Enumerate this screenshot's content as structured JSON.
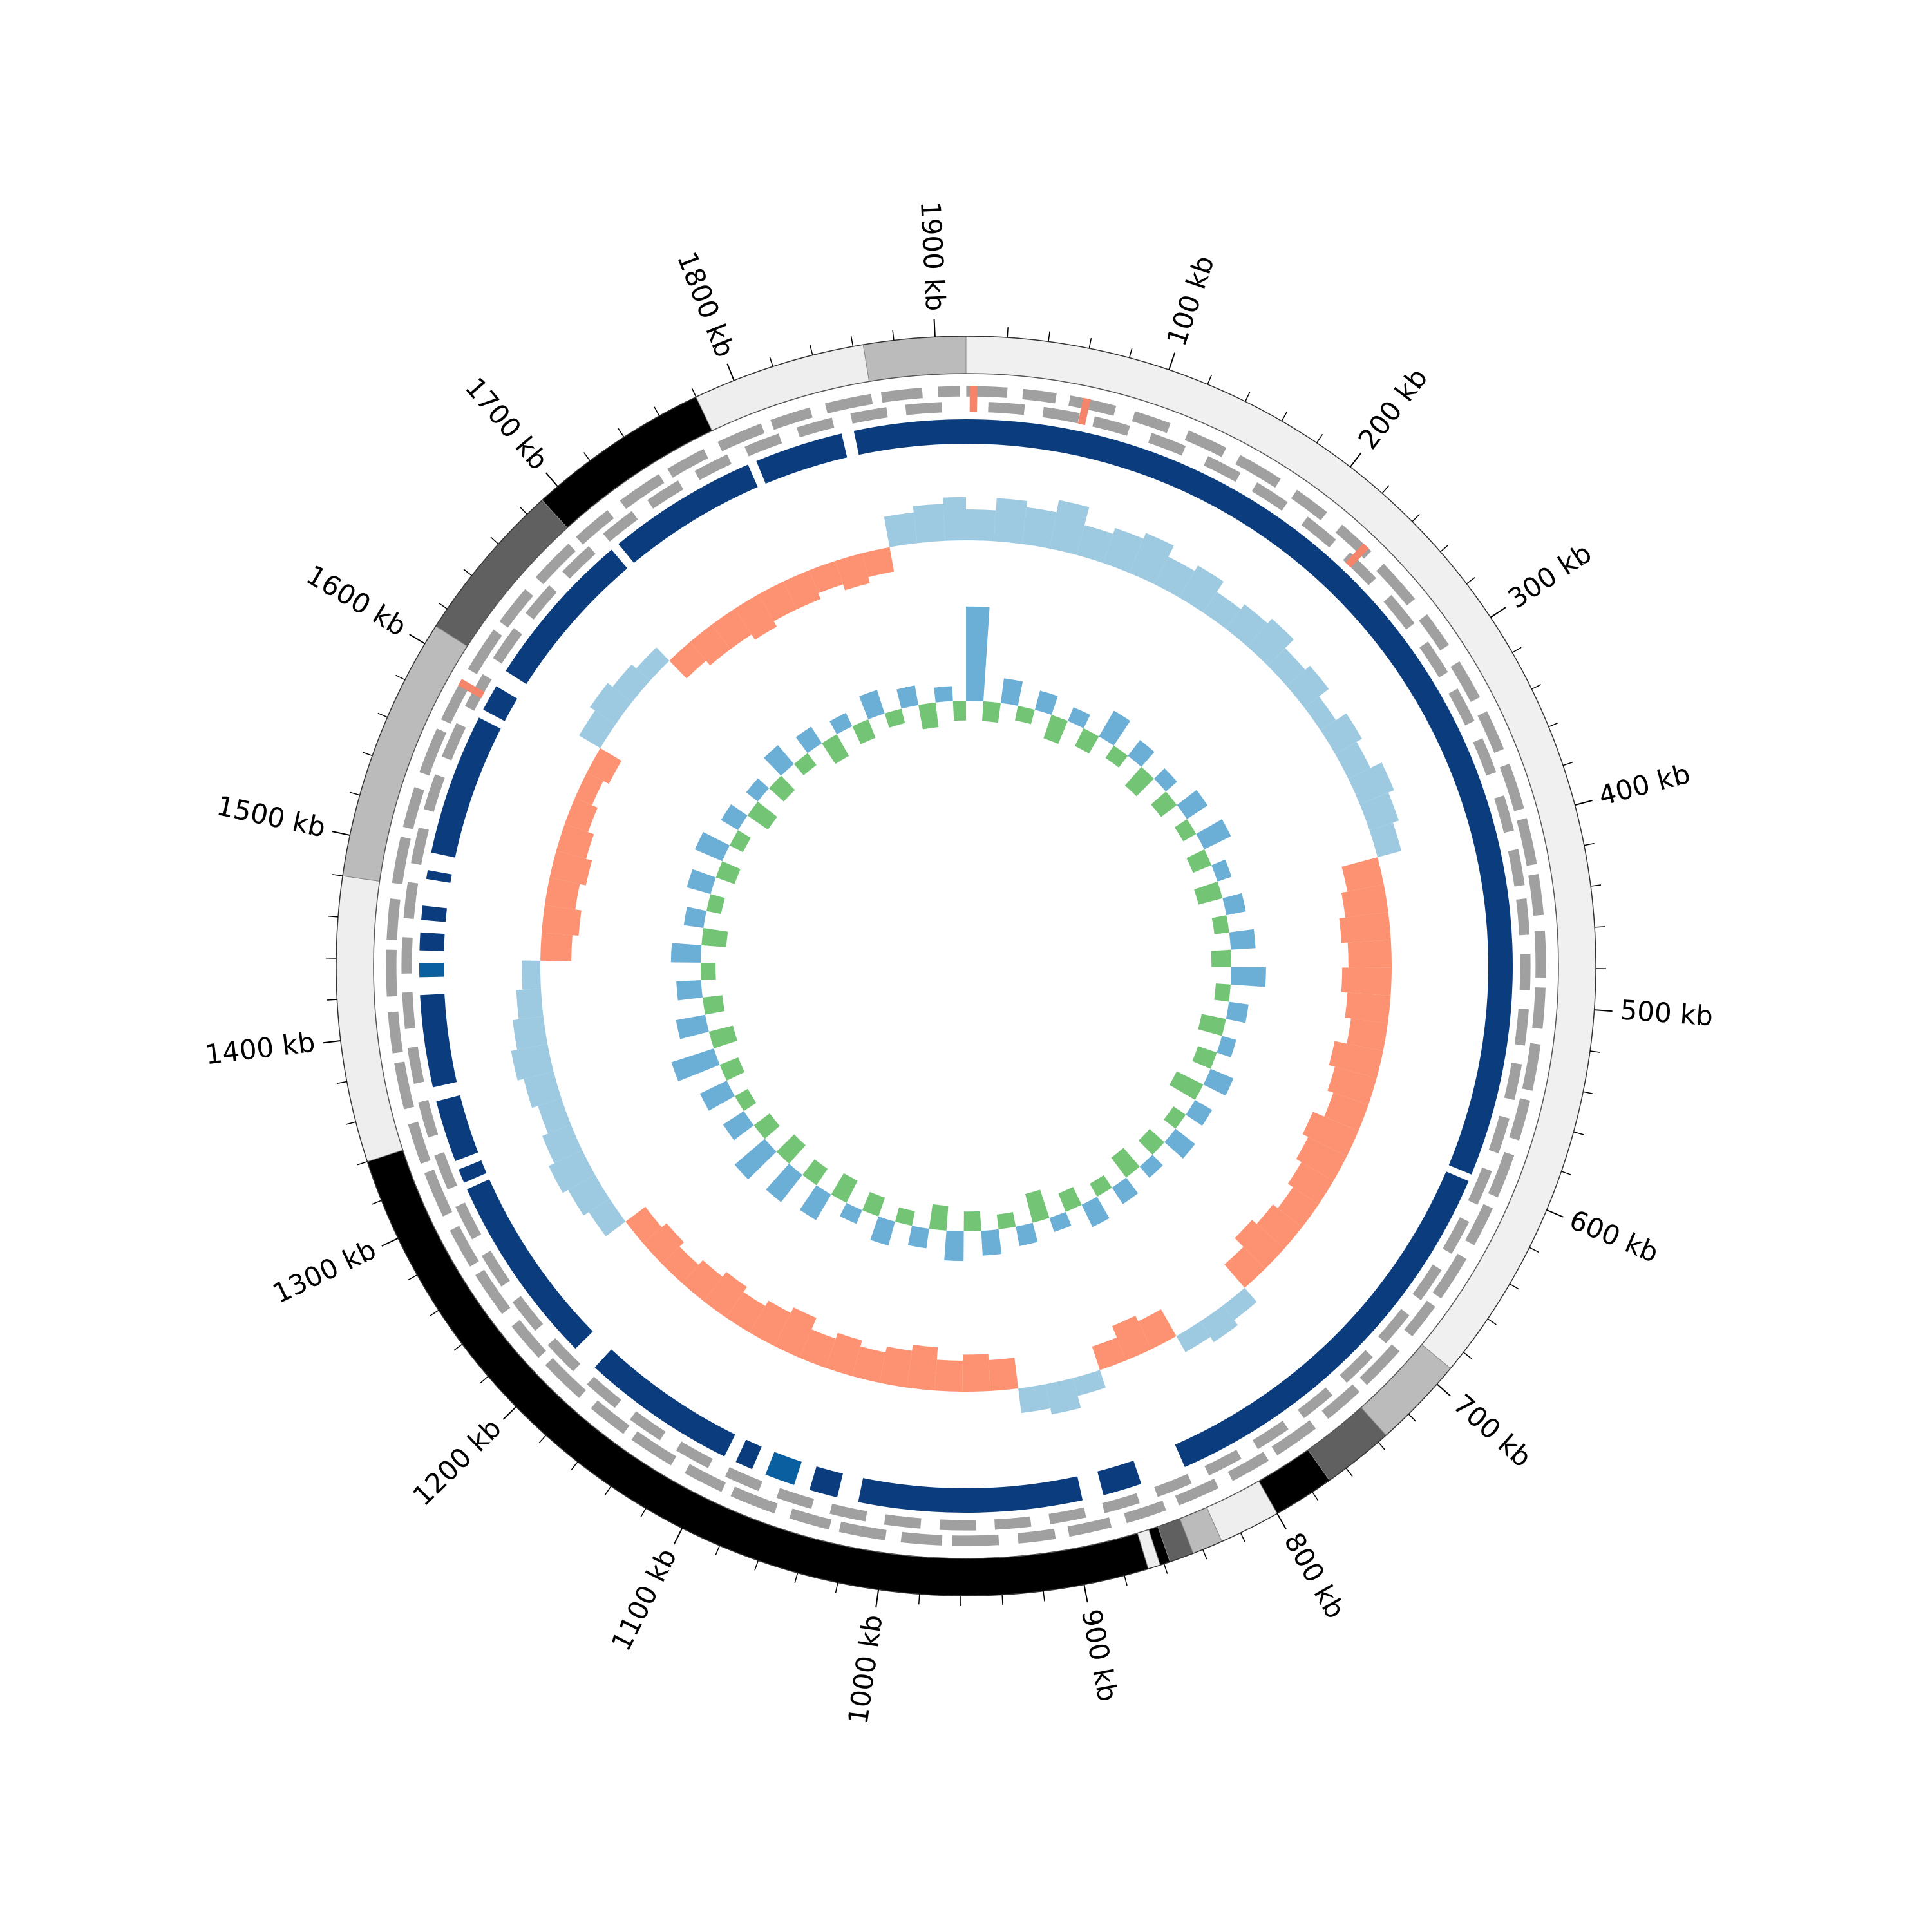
{
  "chart_data": {
    "type": "circular_genome",
    "xlim": [
      0,
      1915
    ],
    "xticks": [
      {
        "value": 100,
        "label": "100 kb"
      },
      {
        "value": 200,
        "label": "200 kb"
      },
      {
        "value": 300,
        "label": "300 kb"
      },
      {
        "value": 400,
        "label": "400 kb"
      },
      {
        "value": 500,
        "label": "500 kb"
      },
      {
        "value": 600,
        "label": "600 kb"
      },
      {
        "value": 700,
        "label": "700 kb"
      },
      {
        "value": 800,
        "label": "800 kb"
      },
      {
        "value": 900,
        "label": "900 kb"
      },
      {
        "value": 1000,
        "label": "1000 kb"
      },
      {
        "value": 1100,
        "label": "1100 kb"
      },
      {
        "value": 1200,
        "label": "1200 kb"
      },
      {
        "value": 1300,
        "label": "1300 kb"
      },
      {
        "value": 1400,
        "label": "1400 kb"
      },
      {
        "value": 1500,
        "label": "1500 kb"
      },
      {
        "value": 1600,
        "label": "1600 kb"
      },
      {
        "value": 1700,
        "label": "1700 kb"
      },
      {
        "value": 1800,
        "label": "1800 kb"
      },
      {
        "value": 1900,
        "label": "1900 kb"
      }
    ],
    "xticks_minor": [
      20,
      40,
      60,
      80,
      120,
      140,
      160,
      180,
      220,
      240,
      260,
      280,
      320,
      340,
      360,
      380,
      420,
      440,
      460,
      480,
      520,
      540,
      560,
      580,
      620,
      640,
      660,
      680,
      720,
      740,
      760,
      780,
      820,
      840,
      860,
      880,
      920,
      940,
      960,
      980,
      1020,
      1040,
      1060,
      1080,
      1120,
      1140,
      1160,
      1180,
      1220,
      1240,
      1260,
      1280,
      1320,
      1340,
      1360,
      1380,
      1420,
      1440,
      1460,
      1480,
      1520,
      1540,
      1560,
      1580,
      1620,
      1640,
      1660,
      1680,
      1720,
      1740,
      1760,
      1780,
      1820,
      1840,
      1860,
      1880
    ],
    "bands": [
      {
        "start": 0,
        "end": 690,
        "color": "#f0f0f0"
      },
      {
        "start": 690,
        "end": 735,
        "color": "#bbbbbb"
      },
      {
        "start": 735,
        "end": 770,
        "color": "#606060"
      },
      {
        "start": 770,
        "end": 800,
        "color": "#000000"
      },
      {
        "start": 800,
        "end": 830,
        "color": "#eeeeee"
      },
      {
        "start": 830,
        "end": 845,
        "color": "#bbbbbb"
      },
      {
        "start": 845,
        "end": 857,
        "color": "#606060"
      },
      {
        "start": 857,
        "end": 862,
        "color": "#000000"
      },
      {
        "start": 862,
        "end": 868,
        "color": "#eeeeee"
      },
      {
        "start": 868,
        "end": 1340,
        "color": "#000000"
      },
      {
        "start": 1340,
        "end": 1480,
        "color": "#eeeeee"
      },
      {
        "start": 1480,
        "end": 1610,
        "color": "#bbbbbb"
      },
      {
        "start": 1610,
        "end": 1690,
        "color": "#606060"
      },
      {
        "start": 1690,
        "end": 1780,
        "color": "#000000"
      },
      {
        "start": 1780,
        "end": 1865,
        "color": "#eeeeee"
      },
      {
        "start": 1865,
        "end": 1915,
        "color": "#bbbbbb"
      }
    ],
    "genes": [
      {
        "color": "#a0a0a0",
        "start": [
          0,
          30,
          55,
          90,
          120,
          150,
          185,
          215,
          245,
          280,
          310,
          340,
          370,
          400,
          430,
          460,
          490,
          520,
          550,
          580,
          610,
          640,
          670,
          700,
          730,
          760,
          790,
          820,
          850,
          880,
          910,
          940,
          970,
          1000,
          1030,
          1060,
          1090,
          1120,
          1150,
          1180,
          1210,
          1240,
          1270,
          1300,
          1330,
          1360,
          1390,
          1420,
          1450,
          1480,
          1510,
          1540,
          1570,
          1600,
          1630,
          1660,
          1690,
          1720,
          1750,
          1780,
          1810,
          1840,
          1870,
          1900
        ],
        "end": [
          22,
          48,
          80,
          110,
          142,
          175,
          205,
          236,
          270,
          300,
          332,
          362,
          395,
          425,
          452,
          485,
          512,
          545,
          572,
          604,
          632,
          665,
          690,
          725,
          752,
          785,
          812,
          843,
          872,
          903,
          930,
          965,
          992,
          1025,
          1052,
          1085,
          1112,
          1145,
          1172,
          1205,
          1232,
          1265,
          1292,
          1325,
          1352,
          1385,
          1412,
          1445,
          1472,
          1505,
          1532,
          1565,
          1592,
          1625,
          1652,
          1685,
          1712,
          1745,
          1772,
          1805,
          1832,
          1865,
          1892,
          1912
        ]
      },
      {
        "color": "#a0a0a0",
        "start": [
          12,
          42,
          70,
          102,
          135,
          165,
          198,
          228,
          260,
          292,
          322,
          352,
          385,
          415,
          442,
          472,
          502,
          532,
          562,
          592,
          622,
          652,
          682,
          712,
          742,
          772,
          802,
          832,
          862,
          892,
          922,
          952,
          982,
          1012,
          1042,
          1072,
          1102,
          1132,
          1162,
          1192,
          1222,
          1252,
          1282,
          1312,
          1342,
          1372,
          1402,
          1432,
          1462,
          1492,
          1522,
          1552,
          1582,
          1612,
          1642,
          1672,
          1702,
          1732,
          1762,
          1792,
          1822,
          1852,
          1882
        ],
        "end": [
          32,
          62,
          90,
          122,
          155,
          185,
          218,
          248,
          280,
          312,
          342,
          372,
          405,
          435,
          462,
          492,
          522,
          552,
          582,
          612,
          642,
          672,
          702,
          732,
          762,
          792,
          822,
          852,
          882,
          912,
          942,
          972,
          1002,
          1032,
          1062,
          1092,
          1122,
          1152,
          1182,
          1212,
          1242,
          1272,
          1302,
          1332,
          1362,
          1392,
          1422,
          1452,
          1482,
          1512,
          1542,
          1572,
          1602,
          1632,
          1662,
          1692,
          1722,
          1752,
          1782,
          1812,
          1842,
          1872,
          1902
        ]
      }
    ],
    "rna_genes": {
      "color": "#f4846a",
      "start": [
        2,
        62,
        230,
        1590
      ],
      "end": [
        6,
        66,
        234,
        1594
      ]
    },
    "blocks": [
      {
        "start": 1852,
        "end": 1915,
        "color": "#0b3d7e"
      },
      {
        "start": 0,
        "end": 598,
        "color": "#0b3d7e"
      },
      {
        "start": 602,
        "end": 832,
        "color": "#0b3d7e"
      },
      {
        "start": 858,
        "end": 880,
        "color": "#0b3d7e"
      },
      {
        "start": 892,
        "end": 1018,
        "color": "#0b3d7e"
      },
      {
        "start": 1030,
        "end": 1046,
        "color": "#0b3d7e"
      },
      {
        "start": 1055,
        "end": 1072,
        "color": "#0a5fa0"
      },
      {
        "start": 1080,
        "end": 1090,
        "color": "#0b3d7e"
      },
      {
        "start": 1097,
        "end": 1185,
        "color": "#0b3d7e"
      },
      {
        "start": 1200,
        "end": 1308,
        "color": "#0b3d7e"
      },
      {
        "start": 1312,
        "end": 1320,
        "color": "#0b3d7e"
      },
      {
        "start": 1325,
        "end": 1360,
        "color": "#0b3d7e"
      },
      {
        "start": 1368,
        "end": 1420,
        "color": "#0b3d7e"
      },
      {
        "start": 1430,
        "end": 1438,
        "color": "#0a5fa0"
      },
      {
        "start": 1445,
        "end": 1455,
        "color": "#0b3d7e"
      },
      {
        "start": 1462,
        "end": 1470,
        "color": "#0b3d7e"
      },
      {
        "start": 1485,
        "end": 1490,
        "color": "#0b3d7e"
      },
      {
        "start": 1500,
        "end": 1580,
        "color": "#0b3d7e"
      },
      {
        "start": 1585,
        "end": 1600,
        "color": "#0b3d7e"
      },
      {
        "start": 1610,
        "end": 1700,
        "color": "#0b3d7e"
      },
      {
        "start": 1705,
        "end": 1790,
        "color": "#0b3d7e"
      },
      {
        "start": 1795,
        "end": 1845,
        "color": "#0b3d7e"
      }
    ],
    "x": [
      0,
      20,
      40,
      60,
      80,
      100,
      120,
      140,
      160,
      180,
      200,
      220,
      240,
      260,
      280,
      300,
      320,
      340,
      360,
      380,
      400,
      420,
      440,
      460,
      480,
      500,
      520,
      540,
      560,
      580,
      600,
      620,
      640,
      660,
      680,
      700,
      720,
      740,
      760,
      780,
      800,
      820,
      840,
      860,
      880,
      900,
      920,
      940,
      960,
      980,
      1000,
      1020,
      1040,
      1060,
      1080,
      1100,
      1120,
      1140,
      1160,
      1180,
      1200,
      1220,
      1240,
      1260,
      1280,
      1300,
      1320,
      1340,
      1360,
      1380,
      1400,
      1420,
      1440,
      1460,
      1480,
      1500,
      1520,
      1540,
      1560,
      1580,
      1600,
      1620,
      1640,
      1660,
      1680,
      1700,
      1720,
      1740,
      1760,
      1780,
      1800,
      1820,
      1840,
      1860,
      1880,
      1900
    ],
    "skew": {
      "ylim": [
        -0.1,
        0.1
      ],
      "positive_color": "#9ecae1",
      "negative_color": "#fc9272",
      "values": [
        0.05,
        0.07,
        0.06,
        0.08,
        0.05,
        0.06,
        0.07,
        0.05,
        0.06,
        0.04,
        0.05,
        0.06,
        0.04,
        0.05,
        0.03,
        0.05,
        0.04,
        0.06,
        0.05,
        0.04,
        -0.06,
        -0.07,
        -0.08,
        -0.07,
        -0.08,
        -0.07,
        -0.06,
        -0.08,
        -0.07,
        -0.06,
        -0.08,
        -0.07,
        -0.06,
        -0.05,
        -0.06,
        -0.07,
        -0.05,
        0.03,
        0.04,
        0.03,
        -0.05,
        -0.06,
        -0.04,
        0.03,
        0.05,
        0.04,
        -0.05,
        -0.06,
        -0.05,
        -0.07,
        -0.06,
        -0.05,
        -0.06,
        -0.05,
        -0.07,
        -0.06,
        -0.05,
        -0.06,
        -0.05,
        -0.04,
        -0.05,
        -0.04,
        0.04,
        0.05,
        0.06,
        0.05,
        0.04,
        0.05,
        0.06,
        0.05,
        0.04,
        0.03,
        -0.05,
        -0.06,
        -0.05,
        -0.06,
        -0.05,
        -0.04,
        -0.03,
        -0.04,
        0.04,
        0.05,
        0.04,
        0.03,
        -0.04,
        -0.05,
        -0.05,
        -0.06,
        -0.05,
        -0.05,
        -0.04,
        -0.05,
        -0.04,
        0.05,
        0.06,
        0.07
      ]
    },
    "inner": {
      "ylim": [
        -2,
        2
      ],
      "positive_color": "#6baed6",
      "negative_color": "#74c476",
      "values": [
        1.9,
        -0.4,
        0.5,
        -0.3,
        0.4,
        -0.5,
        0.3,
        -0.4,
        0.6,
        -0.3,
        0.4,
        -0.5,
        0.3,
        -0.4,
        0.5,
        -0.3,
        0.6,
        -0.4,
        0.3,
        -0.5,
        0.4,
        -0.3,
        0.5,
        -0.4,
        0.7,
        -0.3,
        0.4,
        -0.5,
        0.3,
        -0.4,
        0.5,
        -0.6,
        0.4,
        -0.3,
        0.5,
        -0.4,
        0.3,
        -0.5,
        0.4,
        -0.3,
        0.5,
        -0.4,
        0.3,
        -0.6,
        0.4,
        -0.3,
        0.5,
        -0.4,
        0.6,
        -0.5,
        0.4,
        -0.3,
        0.5,
        -0.4,
        0.3,
        -0.5,
        0.6,
        -0.4,
        0.7,
        -0.5,
        0.8,
        -0.4,
        0.5,
        -0.3,
        0.6,
        -0.4,
        0.9,
        -0.5,
        0.6,
        -0.4,
        0.5,
        -0.3,
        0.6,
        -0.5,
        0.4,
        -0.3,
        0.5,
        -0.4,
        0.6,
        -0.3,
        0.4,
        -0.5,
        0.3,
        -0.4,
        0.5,
        -0.3,
        0.4,
        -0.5,
        0.3,
        -0.4,
        0.5,
        -0.3,
        0.4,
        -0.5,
        0.3,
        -0.4
      ]
    }
  }
}
